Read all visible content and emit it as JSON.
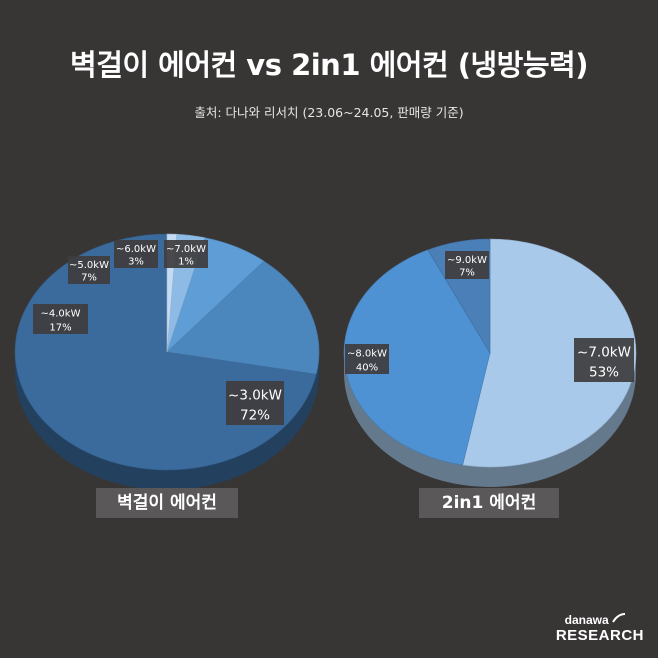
{
  "title": "벽걸이 에어컨 vs 2in1 에어컨 (냉방능력)",
  "subtitle": "출처: 다나와 리서치 (23.06~24.05, 판매량 기준)",
  "logo": {
    "brand": "danawa",
    "name": "RESEARCH"
  },
  "chart_data": [
    {
      "type": "pie",
      "name": "벽걸이 에어컨",
      "categories": [
        "~3.0kW",
        "~4.0kW",
        "~5.0kW",
        "~6.0kW",
        "~7.0kW"
      ],
      "values": [
        72,
        17,
        7,
        3,
        1
      ],
      "value_labels": [
        "72%",
        "17%",
        "7%",
        "3%",
        "1%"
      ],
      "colors": [
        "#3a6b9c",
        "#4b86bd",
        "#5e9dd6",
        "#8dbbe6",
        "#c3dbf3"
      ]
    },
    {
      "type": "pie",
      "name": "2in1 에어컨",
      "categories": [
        "~7.0kW",
        "~8.0kW",
        "~9.0kW"
      ],
      "values": [
        53,
        40,
        7
      ],
      "value_labels": [
        "53%",
        "40%",
        "7%"
      ],
      "colors": [
        "#a9c9ea",
        "#4f92d3",
        "#4a7fb8"
      ]
    }
  ]
}
